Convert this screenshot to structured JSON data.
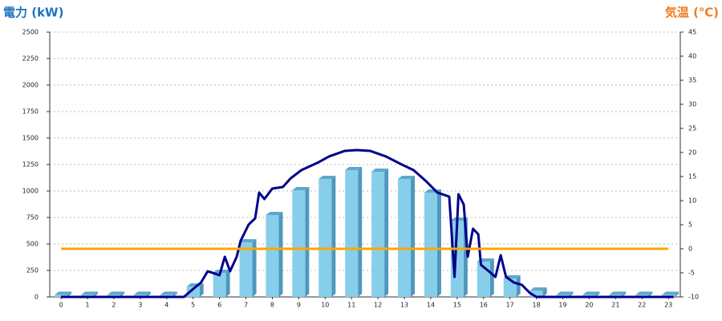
{
  "chart_data": {
    "type": "combo",
    "title": "電力 (kW)",
    "y2_title": "気温 (℃)",
    "categories": [
      "0",
      "1",
      "2",
      "3",
      "4",
      "5",
      "6",
      "7",
      "8",
      "9",
      "10",
      "11",
      "12",
      "13",
      "14",
      "15",
      "16",
      "17",
      "18",
      "19",
      "20",
      "21",
      "22",
      "23"
    ],
    "xlim": [
      -0.43,
      23.45
    ],
    "ylim": [
      0,
      2500
    ],
    "yticks": [
      0,
      250,
      500,
      750,
      1000,
      1250,
      1500,
      1750,
      2000,
      2250,
      2500
    ],
    "y2lim": [
      -10,
      45
    ],
    "y2ticks": [
      -10,
      -5,
      0,
      5,
      10,
      15,
      20,
      25,
      30,
      35,
      40,
      45
    ],
    "grid": true,
    "series": [
      {
        "type": "bar",
        "color": "#87ceeb",
        "values": [
          20,
          20,
          20,
          20,
          20,
          98,
          227,
          515,
          773,
          1008,
          1114,
          1197,
          1182,
          1114,
          985,
          720,
          333,
          174,
          60,
          20,
          20,
          20,
          20,
          20
        ]
      },
      {
        "type": "line",
        "color": "#00008b",
        "x": [
          0,
          4.65,
          5,
          5.3,
          5.55,
          5.75,
          6.0,
          6.2,
          6.4,
          6.65,
          6.8,
          7.1,
          7.35,
          7.5,
          7.7,
          8.0,
          8.4,
          8.7,
          9.1,
          9.7,
          10.15,
          10.75,
          11.2,
          11.7,
          12.3,
          12.9,
          13.35,
          13.8,
          14.25,
          14.7,
          14.9,
          15.05,
          15.25,
          15.4,
          15.6,
          15.8,
          15.9,
          16.2,
          16.45,
          16.65,
          16.85,
          17.15,
          17.45,
          17.75,
          18.0,
          23.2
        ],
        "values": [
          0,
          0,
          75,
          136,
          242,
          227,
          205,
          379,
          242,
          379,
          530,
          682,
          742,
          985,
          924,
          1023,
          1038,
          1121,
          1197,
          1265,
          1326,
          1379,
          1386,
          1379,
          1326,
          1250,
          1197,
          1098,
          985,
          947,
          189,
          970,
          871,
          379,
          644,
          591,
          303,
          242,
          189,
          394,
          189,
          136,
          114,
          38,
          0,
          0
        ]
      },
      {
        "type": "line",
        "axis": "y2",
        "color": "#ffa500",
        "values": [
          0,
          0,
          0,
          0,
          0,
          0,
          0,
          0,
          0,
          0,
          0,
          0,
          0,
          0,
          0,
          0,
          0,
          0,
          0,
          0,
          0,
          0,
          0,
          0
        ]
      }
    ]
  }
}
